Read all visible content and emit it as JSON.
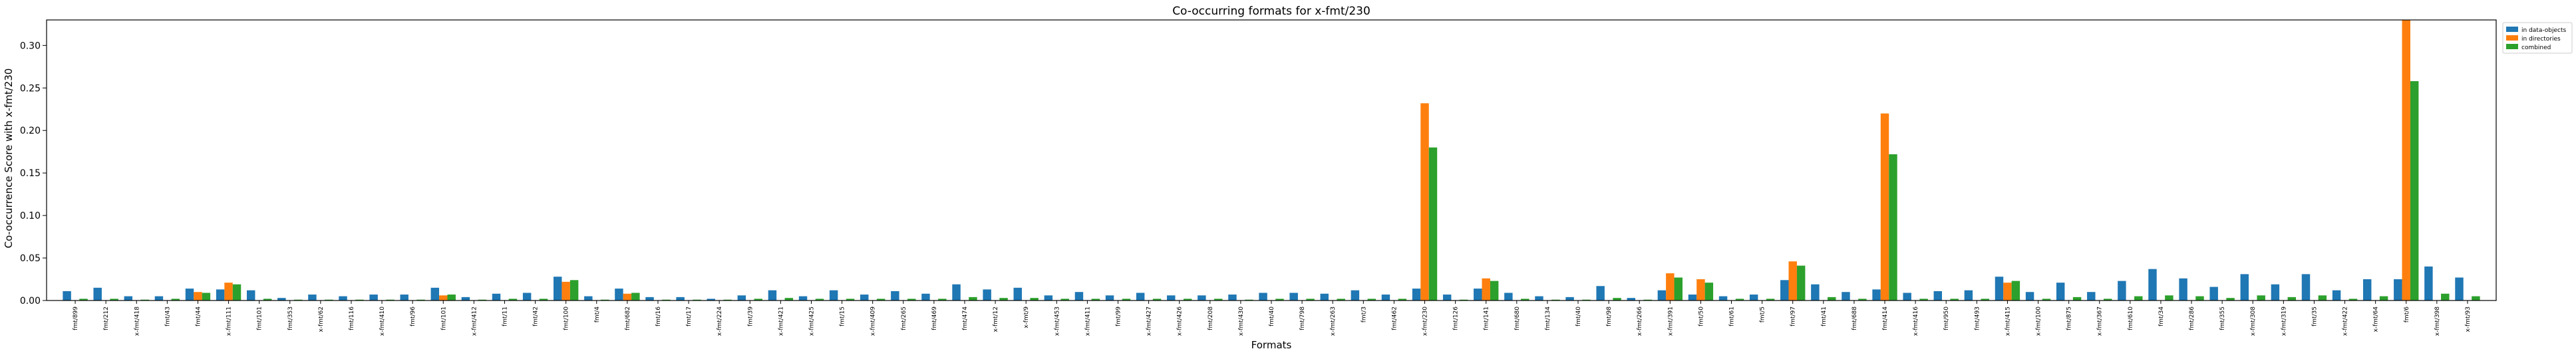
{
  "colors": {
    "in_data_objects": "#1f77b4",
    "in_directories": "#ff7f0e",
    "combined": "#2ca02c"
  },
  "chart_data": {
    "type": "bar",
    "title": "Co-occurring formats for x-fmt/230",
    "xlabel": "Formats",
    "ylabel": "Co-occurrence Score with x-fmt/230",
    "ylim": [
      0,
      0.33
    ],
    "yticks": [
      "0.00",
      "0.05",
      "0.10",
      "0.15",
      "0.20",
      "0.25",
      "0.30"
    ],
    "grid": false,
    "legend_position": "outside top-right",
    "categories": [
      "fmt/899",
      "fmt/212",
      "x-fmt/418",
      "fmt/43",
      "fmt/44",
      "x-fmt/111",
      "fmt/101",
      "fmt/353",
      "x-fmt/62",
      "fmt/116",
      "x-fmt/410",
      "fmt/96",
      "fmt/101",
      "x-fmt/412",
      "fmt/11",
      "fmt/42",
      "fmt/100",
      "fmt/4",
      "fmt/682",
      "fmt/16",
      "fmt/17",
      "x-fmt/224",
      "fmt/39",
      "x-fmt/421",
      "x-fmt/425",
      "fmt/15",
      "x-fmt/409",
      "fmt/265",
      "fmt/469",
      "fmt/474",
      "x-fmt/12",
      "x-fmt/9",
      "x-fmt/453",
      "x-fmt/411",
      "fmt/99",
      "x-fmt/427",
      "x-fmt/426",
      "fmt/208",
      "x-fmt/430",
      "fmt/40",
      "fmt/798",
      "x-fmt/263",
      "fmt/3",
      "fmt/462",
      "x-fmt/230",
      "fmt/126",
      "fmt/141",
      "fmt/680",
      "fmt/134",
      "fmt/40",
      "fmt/98",
      "x-fmt/266",
      "x-fmt/391",
      "fmt/50",
      "fmt/61",
      "fmt/5",
      "fmt/97",
      "fmt/41",
      "fmt/688",
      "fmt/414",
      "x-fmt/416",
      "fmt/950",
      "fmt/493",
      "x-fmt/415",
      "x-fmt/100",
      "fmt/875",
      "x-fmt/367",
      "fmt/610",
      "fmt/34",
      "fmt/286",
      "fmt/355",
      "x-fmt/308",
      "x-fmt/319",
      "fmt/35",
      "x-fmt/422",
      "x-fmt/64",
      "fmt/6",
      "x-fmt/398",
      "x-fmt/93"
    ],
    "series": [
      {
        "name": "in data-objects",
        "values": [
          0.011,
          0.015,
          0.005,
          0.005,
          0.014,
          0.013,
          0.012,
          0.003,
          0.007,
          0.005,
          0.007,
          0.007,
          0.015,
          0.004,
          0.008,
          0.009,
          0.028,
          0.005,
          0.014,
          0.004,
          0.004,
          0.002,
          0.006,
          0.012,
          0.005,
          0.012,
          0.007,
          0.011,
          0.008,
          0.019,
          0.013,
          0.015,
          0.006,
          0.01,
          0.006,
          0.009,
          0.006,
          0.006,
          0.007,
          0.009,
          0.009,
          0.008,
          0.012,
          0.007,
          0.014,
          0.007,
          0.014,
          0.009,
          0.005,
          0.004,
          0.017,
          0.003,
          0.012,
          0.007,
          0.005,
          0.007,
          0.024,
          0.019,
          0.01,
          0.013,
          0.009,
          0.011,
          0.012,
          0.028,
          0.01,
          0.021,
          0.01,
          0.023,
          0.037,
          0.026,
          0.016,
          0.031,
          0.019,
          0.031,
          0.012,
          0.025,
          0.025,
          0.04,
          0.027
        ]
      },
      {
        "name": "in directories",
        "values": [
          0,
          0,
          0,
          0,
          0.01,
          0.021,
          0,
          0,
          0,
          0,
          0,
          0,
          0.006,
          0,
          0,
          0,
          0.022,
          0,
          0.008,
          0,
          0,
          0,
          0,
          0,
          0,
          0,
          0,
          0,
          0,
          0,
          0,
          0,
          0,
          0,
          0,
          0,
          0,
          0,
          0,
          0,
          0,
          0,
          0,
          0,
          0.232,
          0,
          0.026,
          0,
          0,
          0,
          0,
          0,
          0.032,
          0.025,
          0,
          0,
          0.046,
          0,
          0,
          0.22,
          0,
          0,
          0,
          0.021,
          0,
          0,
          0,
          0,
          0,
          0,
          0,
          0,
          0,
          0,
          0,
          0,
          0.33,
          0,
          0
        ]
      },
      {
        "name": "combined",
        "values": [
          0.002,
          0.002,
          0.001,
          0.002,
          0.009,
          0.019,
          0.002,
          0.001,
          0.001,
          0.001,
          0.001,
          0.001,
          0.007,
          0.001,
          0.002,
          0.002,
          0.024,
          0.001,
          0.009,
          0.001,
          0.001,
          0.001,
          0.002,
          0.003,
          0.002,
          0.002,
          0.002,
          0.002,
          0.002,
          0.004,
          0.003,
          0.003,
          0.002,
          0.002,
          0.002,
          0.002,
          0.002,
          0.002,
          0.001,
          0.002,
          0.002,
          0.002,
          0.002,
          0.002,
          0.18,
          0.001,
          0.023,
          0.002,
          0.001,
          0.001,
          0.003,
          0.001,
          0.027,
          0.021,
          0.002,
          0.002,
          0.041,
          0.004,
          0.002,
          0.172,
          0.002,
          0.002,
          0.002,
          0.023,
          0.002,
          0.004,
          0.002,
          0.005,
          0.006,
          0.005,
          0.003,
          0.006,
          0.004,
          0.006,
          0.002,
          0.005,
          0.258,
          0.008,
          0.005
        ]
      }
    ]
  }
}
